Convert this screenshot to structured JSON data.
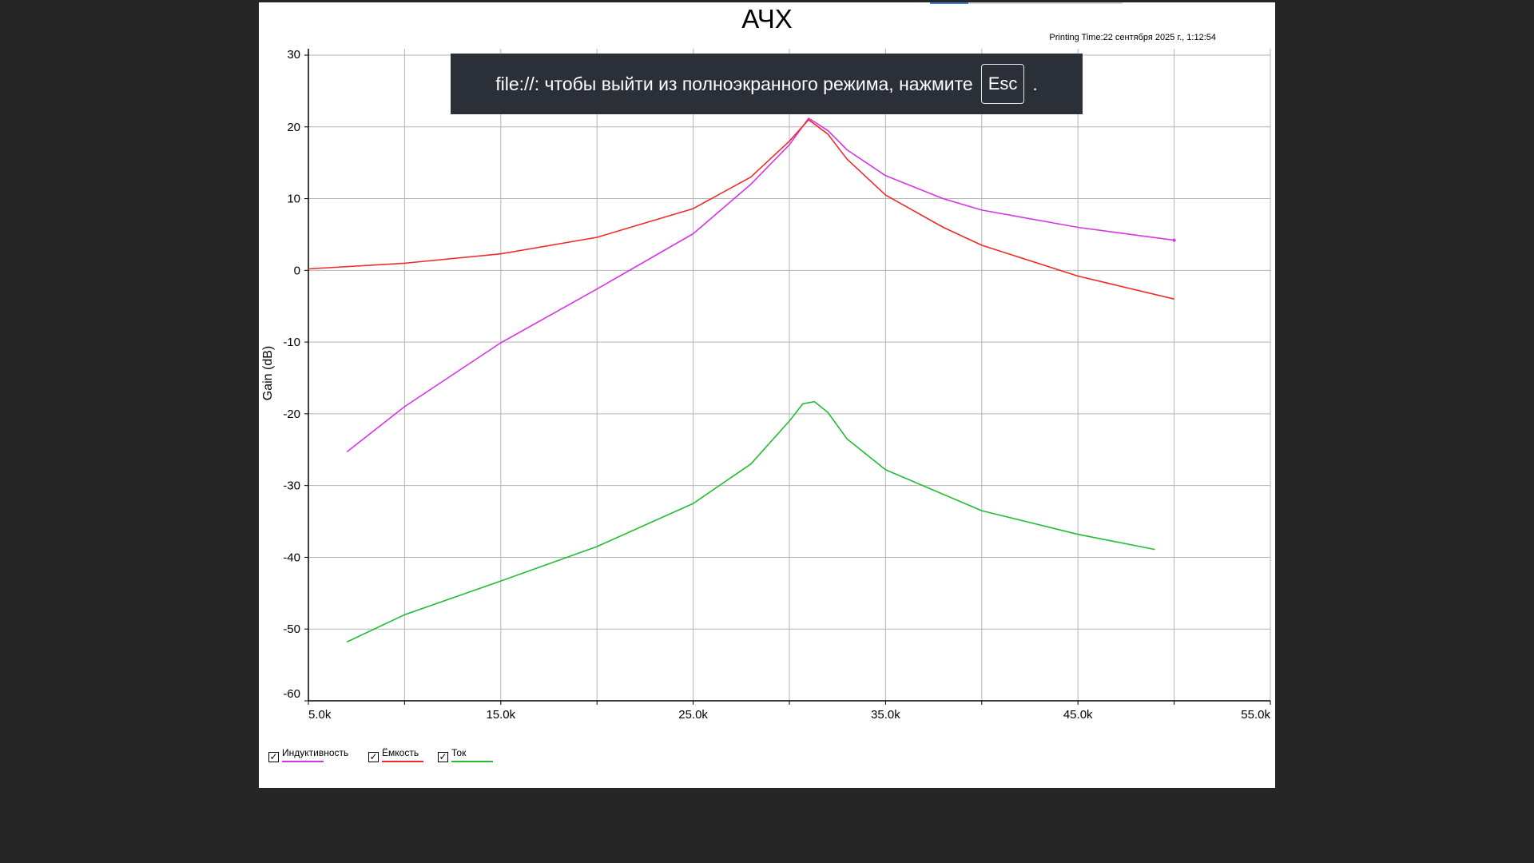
{
  "page": {
    "title": "АЧХ",
    "printing_time": "Printing Time:22 сентября 2025 г., 1:12:54"
  },
  "fullscreen_notice": {
    "text_before": "file://: чтобы выйти из полноэкранного режима, нажмите",
    "key": "Esc",
    "text_after": "."
  },
  "legend": {
    "items": [
      {
        "label": "Индуктивность",
        "checked": true,
        "color": "#d633e6",
        "check_mark": "✓"
      },
      {
        "label": "Ёмкость",
        "checked": true,
        "color": "#ee2a2a",
        "check_mark": "✓"
      },
      {
        "label": "Ток",
        "checked": true,
        "color": "#22bb33",
        "check_mark": "✓"
      }
    ]
  },
  "chart_data": {
    "type": "line",
    "title": "АЧХ",
    "xlabel": "",
    "ylabel": "Gain (dB)",
    "xlim": [
      5000,
      55000
    ],
    "ylim": [
      -60,
      30
    ],
    "x_ticks": [
      "5.0k",
      "15.0k",
      "25.0k",
      "35.0k",
      "45.0k",
      "55.0k"
    ],
    "y_ticks": [
      "30",
      "20",
      "10",
      "0",
      "-10",
      "-20",
      "-30",
      "-40",
      "-50",
      "-60"
    ],
    "grid": true,
    "legend_position": "bottom-left",
    "series": [
      {
        "name": "Индуктивность",
        "color": "#d633e6",
        "points": [
          [
            7000,
            -25.3
          ],
          [
            10000,
            -19
          ],
          [
            15000,
            -10.1
          ],
          [
            20000,
            -2.6
          ],
          [
            25000,
            5.1
          ],
          [
            28000,
            12
          ],
          [
            30000,
            17.5
          ],
          [
            31000,
            21.2
          ],
          [
            32000,
            19.5
          ],
          [
            33000,
            16.8
          ],
          [
            35000,
            13.2
          ],
          [
            38000,
            10
          ],
          [
            40000,
            8.4
          ],
          [
            45000,
            6
          ],
          [
            50000,
            4.2
          ]
        ]
      },
      {
        "name": "Ёмкость",
        "color": "#ee2a2a",
        "points": [
          [
            5000,
            0.2
          ],
          [
            10000,
            1
          ],
          [
            15000,
            2.3
          ],
          [
            20000,
            4.6
          ],
          [
            25000,
            8.6
          ],
          [
            28000,
            13
          ],
          [
            30000,
            18
          ],
          [
            31000,
            21
          ],
          [
            32000,
            19
          ],
          [
            33000,
            15.5
          ],
          [
            35000,
            10.5
          ],
          [
            38000,
            6
          ],
          [
            40000,
            3.5
          ],
          [
            45000,
            -0.8
          ],
          [
            50000,
            -4
          ]
        ]
      },
      {
        "name": "Ток",
        "color": "#22bb33",
        "points": [
          [
            7000,
            -51.8
          ],
          [
            10000,
            -48
          ],
          [
            15000,
            -43.3
          ],
          [
            20000,
            -38.5
          ],
          [
            25000,
            -32.5
          ],
          [
            28000,
            -27
          ],
          [
            30000,
            -21
          ],
          [
            30700,
            -18.6
          ],
          [
            31300,
            -18.3
          ],
          [
            32000,
            -19.8
          ],
          [
            33000,
            -23.5
          ],
          [
            35000,
            -27.8
          ],
          [
            40000,
            -33.5
          ],
          [
            45000,
            -36.8
          ],
          [
            49000,
            -38.9
          ]
        ]
      }
    ]
  }
}
